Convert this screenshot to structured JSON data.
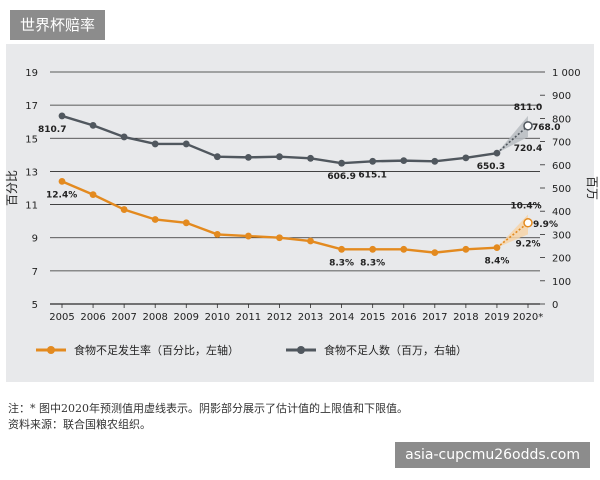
{
  "header": {
    "title": "世界杯赔率"
  },
  "footer": {
    "note": "注：* 图中2020年预测值用虚线表示。阴影部分展示了估计值的上限值和下限值。",
    "source": "资料来源：联合国粮农组织。",
    "watermark": "asia-cupcmu26odds.com"
  },
  "colors": {
    "orange": "#e38a1f",
    "gray": "#50575e",
    "band_orange": "#f6d3a8",
    "band_gray": "#b7bcc1"
  },
  "chart_data": {
    "type": "line",
    "x_ticks": [
      "2005",
      "2006",
      "2007",
      "2008",
      "2009",
      "2010",
      "2011",
      "2012",
      "2013",
      "2014",
      "2015",
      "2016",
      "2017",
      "2018",
      "2019",
      "2020*"
    ],
    "left_axis": {
      "label": "百分比",
      "ylim": [
        5,
        19
      ],
      "ticks": [
        "5",
        "7",
        "9",
        "11",
        "13",
        "15",
        "17",
        "19"
      ]
    },
    "right_axis": {
      "label": "百万",
      "ylim": [
        0,
        1000
      ],
      "ticks": [
        "0",
        "100",
        "200",
        "300",
        "400",
        "500",
        "600",
        "700",
        "800",
        "900",
        "1 000"
      ]
    },
    "series": [
      {
        "name": "食物不足发生率（百分比，左轴）",
        "axis": "left",
        "values": [
          12.4,
          11.6,
          10.7,
          10.1,
          9.9,
          9.2,
          9.1,
          9.0,
          8.8,
          8.3,
          8.3,
          8.3,
          8.1,
          8.3,
          8.4,
          9.9
        ],
        "projection_low": 9.2,
        "projection_high": 10.4
      },
      {
        "name": "食物不足人数（百万，右轴）",
        "axis": "right",
        "values": [
          810.7,
          770,
          720,
          690,
          690,
          635,
          632,
          635,
          628,
          606.9,
          615.1,
          618,
          615,
          630,
          650.3,
          768.0
        ],
        "projection_low": 720.4,
        "projection_high": 811.0
      }
    ],
    "data_labels": {
      "orange": [
        "12.4%",
        "8.3%",
        "8.3%",
        "8.4%",
        "10.4%",
        "9.9%",
        "9.2%"
      ],
      "gray": [
        "810.7",
        "606.9",
        "615.1",
        "650.3",
        "811.0",
        "768.0",
        "720.4"
      ]
    },
    "grid": true,
    "legend_position": "bottom"
  }
}
